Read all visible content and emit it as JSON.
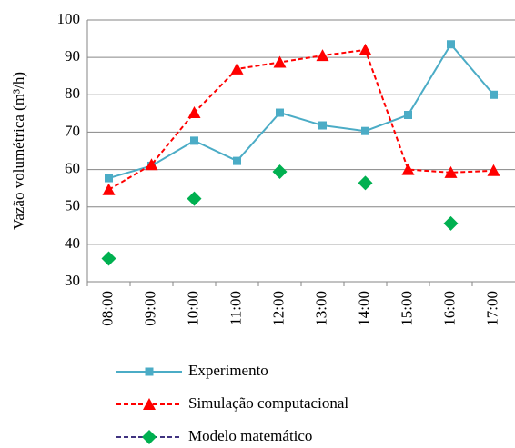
{
  "chart_data": {
    "type": "line",
    "ylabel": "Vazão volumétrica (m³/h)",
    "categories": [
      "08:00",
      "09:00",
      "10:00",
      "11:00",
      "12:00",
      "13:00",
      "14:00",
      "15:00",
      "16:00",
      "17:00"
    ],
    "series": [
      {
        "name": "Experimento",
        "color": "#4bacc6",
        "line": "solid",
        "marker": "square",
        "values": [
          57.7,
          61,
          67.7,
          62.3,
          75.2,
          71.8,
          70.3,
          74.6,
          93.5,
          80
        ]
      },
      {
        "name": "Simulação computacional",
        "color": "#ff0000",
        "line": "dashed",
        "marker": "triangle",
        "values": [
          54.6,
          61.3,
          75.2,
          86.9,
          88.7,
          90.5,
          92,
          60,
          59.2,
          59.7
        ]
      },
      {
        "name": "Modelo matemático",
        "color": "#00b050",
        "line_color": "#403380",
        "line": "dashed",
        "marker": "diamond",
        "values": [
          36.2,
          null,
          52.2,
          null,
          59.4,
          null,
          56.4,
          null,
          45.6,
          null
        ]
      }
    ],
    "ylim": [
      30,
      100
    ],
    "yticks": [
      30,
      40,
      50,
      60,
      70,
      80,
      90,
      100
    ],
    "grid": true
  }
}
